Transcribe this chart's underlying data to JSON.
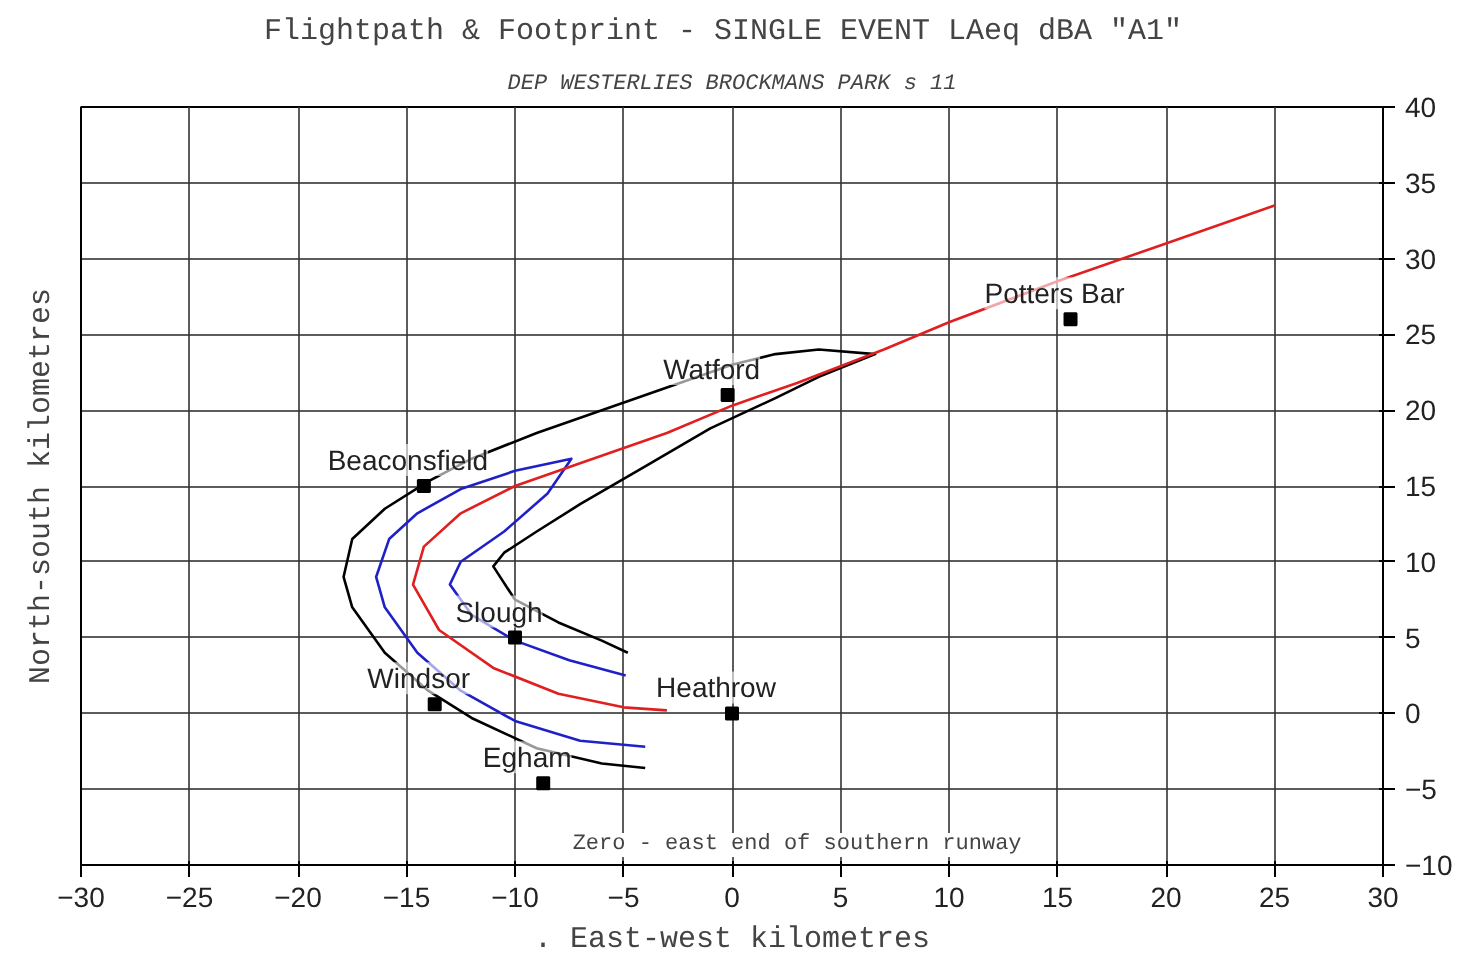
{
  "chart_data": {
    "type": "line",
    "title": "Flightpath & Footprint - SINGLE EVENT LAeq dBA  \"A1\"",
    "subtitle": "DEP WESTERLIES BROCKMANS PARK s 11",
    "xlabel": ". East-west kilometres",
    "ylabel": "North-south kilometres",
    "xlim": [
      -30,
      30
    ],
    "ylim": [
      -10,
      40
    ],
    "xticks": [
      -30,
      -25,
      -20,
      -15,
      -10,
      -5,
      0,
      5,
      10,
      15,
      20,
      25,
      30
    ],
    "yticks": [
      -10,
      -5,
      0,
      5,
      10,
      15,
      20,
      25,
      30,
      35,
      40
    ],
    "grid": true,
    "marker": "none",
    "line_style": "solid",
    "series": [
      {
        "color": "#000000",
        "x": [
          -4,
          -6,
          -9,
          -12,
          -14,
          -16,
          -17.5,
          -17.9,
          -17.5,
          -16,
          -14,
          -12,
          -9,
          -6,
          -3,
          0,
          2,
          4,
          6.6,
          4,
          2,
          -1,
          -4,
          -7,
          -9,
          -10.5,
          -11,
          -10,
          -8,
          -6,
          -4.8
        ],
        "values": [
          -3.6,
          -3.3,
          -2.3,
          -0.3,
          1.5,
          4,
          7,
          9,
          11.5,
          13.5,
          15.3,
          16.8,
          18.5,
          20,
          21.5,
          23,
          23.7,
          24,
          23.7,
          22.2,
          20.8,
          18.8,
          16.3,
          13.8,
          12,
          10.6,
          9.7,
          7.5,
          6,
          4.8,
          4
        ]
      },
      {
        "color": "#2020c8",
        "x": [
          -4,
          -7,
          -10,
          -12.5,
          -14.5,
          -16,
          -16.4,
          -15.8,
          -14.5,
          -12.5,
          -10,
          -7.4,
          -8.5,
          -10.5,
          -12.5,
          -13,
          -12,
          -10,
          -7.5,
          -4.9
        ],
        "values": [
          -2.2,
          -1.8,
          -0.5,
          1.5,
          4,
          7,
          9,
          11.5,
          13.2,
          14.8,
          16,
          16.8,
          14.5,
          12,
          10,
          8.5,
          6.5,
          4.8,
          3.5,
          2.5
        ]
      },
      {
        "color": "#e02020",
        "x": [
          -3,
          -5,
          -8,
          -11,
          -13.5,
          -14.7,
          -14.2,
          -12.5,
          -10,
          -7,
          -3,
          0,
          3,
          7,
          10,
          15,
          20,
          25
        ],
        "values": [
          0.2,
          0.4,
          1.3,
          3,
          5.5,
          8.5,
          11,
          13.2,
          15,
          16.5,
          18.5,
          20.3,
          21.8,
          24,
          25.8,
          28.5,
          31,
          33.5
        ]
      },
      {
        "type": "scatter",
        "marker": "square",
        "color": "#000000",
        "x": [
          15.6,
          -0.2,
          -14.2,
          -10,
          -13.7,
          -8.7,
          0
        ],
        "values": [
          26,
          21,
          15,
          5,
          0.6,
          -4.6,
          0
        ]
      }
    ],
    "annotations": [
      {
        "text": "Potters Bar",
        "x": 15.6,
        "y": 26
      },
      {
        "text": "Watford",
        "x": -0.2,
        "y": 21
      },
      {
        "text": "Beaconsfield",
        "x": -14.2,
        "y": 15
      },
      {
        "text": "Slough",
        "x": -10,
        "y": 5
      },
      {
        "text": "Windsor",
        "x": -13.7,
        "y": 0.6
      },
      {
        "text": "Egham",
        "x": -8.7,
        "y": -4.6
      },
      {
        "text": "Heathrow",
        "x": 0,
        "y": 0
      },
      "Zero - east end of southern runway"
    ]
  }
}
